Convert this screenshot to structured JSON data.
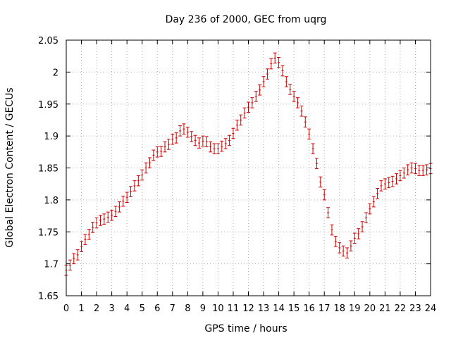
{
  "chart_data": {
    "type": "scatter",
    "title": "Day 236 of 2000, GEC from uqrg",
    "xlabel": "GPS time / hours",
    "ylabel": "Global Electron Content / GECUs",
    "xlim": [
      0,
      24
    ],
    "ylim": [
      1.65,
      2.05
    ],
    "x_ticks": [
      0,
      1,
      2,
      3,
      4,
      5,
      6,
      7,
      8,
      9,
      10,
      11,
      12,
      13,
      14,
      15,
      16,
      17,
      18,
      19,
      20,
      21,
      22,
      23,
      24
    ],
    "y_ticks": [
      1.65,
      1.7,
      1.75,
      1.8,
      1.85,
      1.9,
      1.95,
      2,
      2.05
    ],
    "x_tick_labels": [
      "0",
      "1",
      "2",
      "3",
      "4",
      "5",
      "6",
      "7",
      "8",
      "9",
      "10",
      "11",
      "12",
      "13",
      "14",
      "15",
      "16",
      "17",
      "18",
      "19",
      "20",
      "21",
      "22",
      "23",
      "24"
    ],
    "y_tick_labels": [
      "1.65",
      "1.7",
      "1.75",
      "1.8",
      "1.85",
      "1.9",
      "1.95",
      "2",
      "2.05"
    ],
    "grid": true,
    "error_bar_half_width": 0.008,
    "series_color": "#cc0000",
    "series": [
      {
        "x": [
          0.0,
          0.25,
          0.5,
          0.75,
          1.0,
          1.25,
          1.5,
          1.75,
          2.0,
          2.25,
          2.5,
          2.75,
          3.0,
          3.25,
          3.5,
          3.75,
          4.0,
          4.25,
          4.5,
          4.75,
          5.0,
          5.25,
          5.5,
          5.75,
          6.0,
          6.25,
          6.5,
          6.75,
          7.0,
          7.25,
          7.5,
          7.75,
          8.0,
          8.25,
          8.5,
          8.75,
          9.0,
          9.25,
          9.5,
          9.75,
          10.0,
          10.25,
          10.5,
          10.75,
          11.0,
          11.25,
          11.5,
          11.75,
          12.0,
          12.25,
          12.5,
          12.75,
          13.0,
          13.25,
          13.5,
          13.75,
          14.0,
          14.25,
          14.5,
          14.75,
          15.0,
          15.25,
          15.5,
          15.75,
          16.0,
          16.25,
          16.5,
          16.75,
          17.0,
          17.25,
          17.5,
          17.75,
          18.0,
          18.25,
          18.5,
          18.75,
          19.0,
          19.25,
          19.5,
          19.75,
          20.0,
          20.25,
          20.5,
          20.75,
          21.0,
          21.25,
          21.5,
          21.75,
          22.0,
          22.25,
          22.5,
          22.75,
          23.0,
          23.25,
          23.5,
          23.75,
          24.0
        ],
        "y": [
          1.69,
          1.698,
          1.708,
          1.714,
          1.727,
          1.738,
          1.746,
          1.757,
          1.764,
          1.768,
          1.77,
          1.773,
          1.776,
          1.782,
          1.789,
          1.798,
          1.804,
          1.813,
          1.822,
          1.83,
          1.839,
          1.85,
          1.858,
          1.87,
          1.875,
          1.876,
          1.883,
          1.887,
          1.895,
          1.897,
          1.908,
          1.911,
          1.906,
          1.899,
          1.893,
          1.889,
          1.892,
          1.891,
          1.883,
          1.88,
          1.88,
          1.884,
          1.888,
          1.893,
          1.904,
          1.917,
          1.925,
          1.936,
          1.945,
          1.952,
          1.962,
          1.972,
          1.985,
          1.997,
          2.013,
          2.022,
          2.015,
          2.002,
          1.985,
          1.973,
          1.962,
          1.952,
          1.939,
          1.922,
          1.903,
          1.88,
          1.857,
          1.828,
          1.808,
          1.78,
          1.753,
          1.735,
          1.725,
          1.72,
          1.717,
          1.728,
          1.74,
          1.747,
          1.758,
          1.772,
          1.786,
          1.797,
          1.81,
          1.822,
          1.825,
          1.827,
          1.829,
          1.833,
          1.838,
          1.842,
          1.847,
          1.85,
          1.849,
          1.846,
          1.846,
          1.847,
          1.849
        ]
      }
    ]
  }
}
